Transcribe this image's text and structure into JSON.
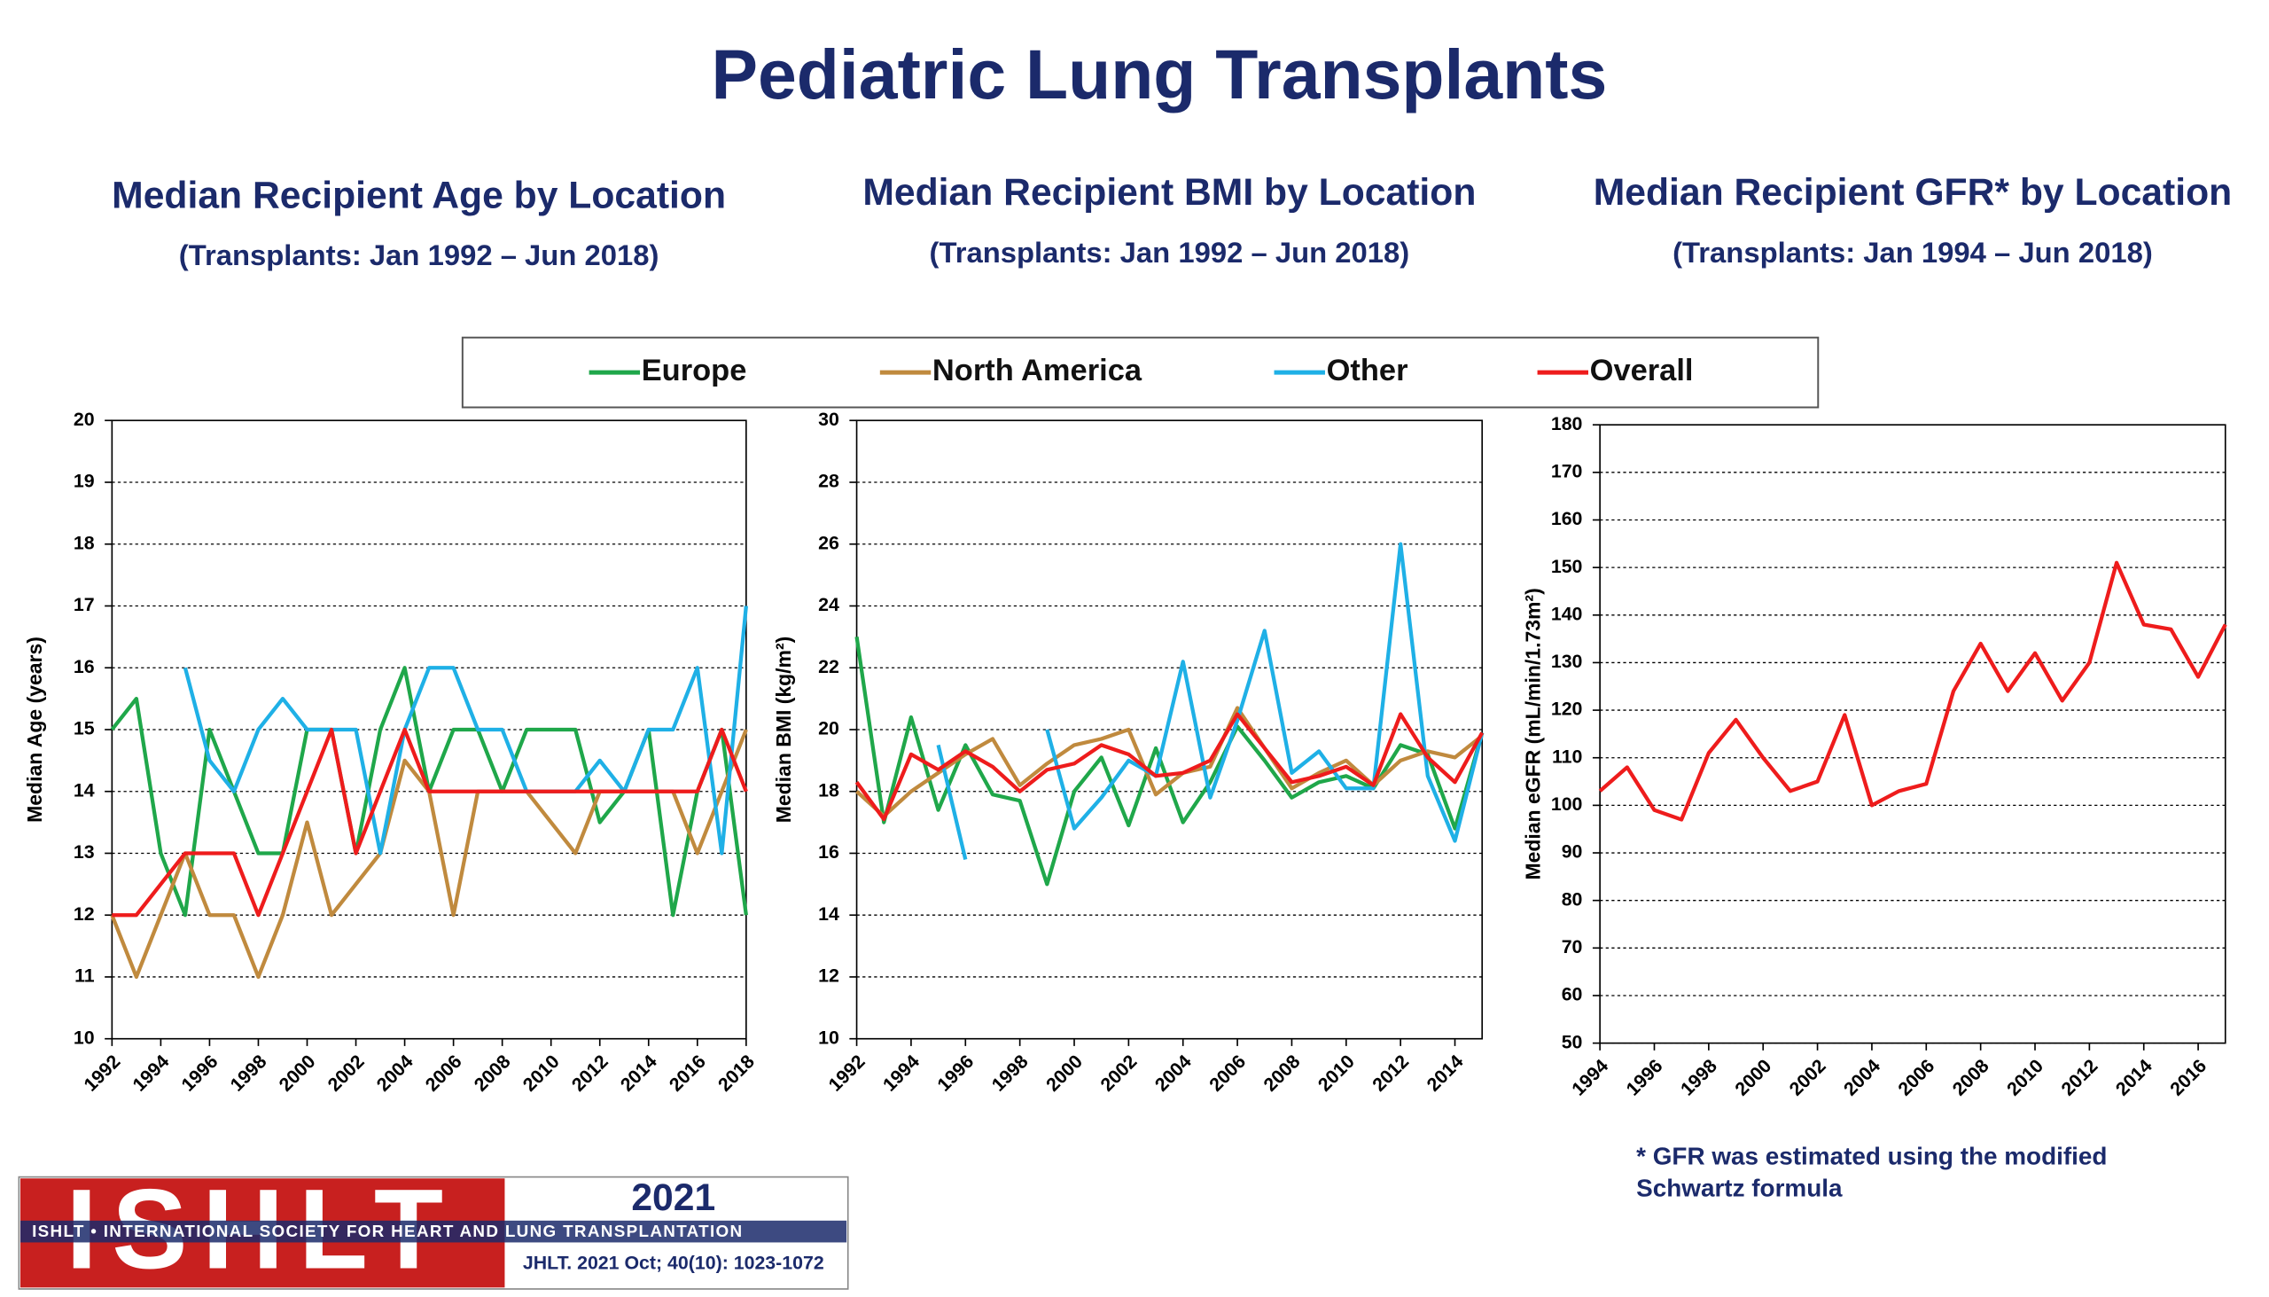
{
  "title": "Pediatric Lung Transplants",
  "chart_data": [
    {
      "type": "line",
      "title": "Median Recipient Age by Location",
      "subtitle": "(Transplants: Jan 1992 – Jun 2018)",
      "y_label": "Median Age (years)",
      "x": [
        1992,
        1993,
        1994,
        1995,
        1996,
        1997,
        1998,
        1999,
        2000,
        2001,
        2002,
        2003,
        2004,
        2005,
        2006,
        2007,
        2008,
        2009,
        2010,
        2011,
        2012,
        2013,
        2014,
        2015,
        2016,
        2017,
        2018
      ],
      "xlim": [
        1992,
        2018
      ],
      "xticks": [
        1992,
        1994,
        1996,
        1998,
        2000,
        2002,
        2004,
        2006,
        2008,
        2010,
        2012,
        2014,
        2016,
        2018
      ],
      "ylim": [
        10,
        20
      ],
      "yticks": [
        10,
        11,
        12,
        13,
        14,
        15,
        16,
        17,
        18,
        19,
        20
      ],
      "grid": true,
      "series": [
        {
          "name": "Europe",
          "color": "#1fa74a",
          "values": [
            15,
            15.5,
            13,
            12,
            15,
            14,
            13,
            13,
            15,
            15,
            13,
            15,
            16,
            14,
            15,
            15,
            14,
            15,
            15,
            15,
            13.5,
            14,
            15,
            12,
            14,
            15,
            12
          ]
        },
        {
          "name": "North America",
          "color": "#c08a3e",
          "values": [
            12,
            11,
            12,
            13,
            12,
            12,
            11,
            12,
            13.5,
            12,
            12.5,
            13,
            14.5,
            14,
            12,
            14,
            14,
            14,
            13.5,
            13,
            14,
            14,
            14,
            14,
            13,
            14,
            15
          ]
        },
        {
          "name": "Other",
          "color": "#1fb0e6",
          "values": [
            null,
            null,
            null,
            16,
            14.5,
            14,
            15,
            15.5,
            15,
            15,
            15,
            13,
            15,
            16,
            16,
            15,
            15,
            14,
            14,
            14,
            14.5,
            14,
            15,
            15,
            16,
            13,
            17
          ]
        },
        {
          "name": "Overall",
          "color": "#ee1c1c",
          "values": [
            12,
            12,
            12.5,
            13,
            13,
            13,
            12,
            13,
            14,
            15,
            13,
            14,
            15,
            14,
            14,
            14,
            14,
            14,
            14,
            14,
            14,
            14,
            14,
            14,
            14,
            15,
            14
          ]
        }
      ]
    },
    {
      "type": "line",
      "title": "Median Recipient BMI by Location",
      "subtitle": "(Transplants: Jan 1992 – Jun 2018)",
      "y_label": "Median BMI (kg/m²)",
      "x": [
        1992,
        1993,
        1994,
        1995,
        1996,
        1997,
        1998,
        1999,
        2000,
        2001,
        2002,
        2003,
        2004,
        2005,
        2006,
        2007,
        2008,
        2009,
        2010,
        2011,
        2012,
        2013,
        2014,
        2015
      ],
      "xlim": [
        1992,
        2015
      ],
      "xticks": [
        1992,
        1994,
        1996,
        1998,
        2000,
        2002,
        2004,
        2006,
        2008,
        2010,
        2012,
        2014
      ],
      "ylim": [
        10,
        30
      ],
      "yticks": [
        10,
        12,
        14,
        16,
        18,
        20,
        22,
        24,
        26,
        28,
        30
      ],
      "grid": true,
      "series": [
        {
          "name": "Europe",
          "color": "#1fa74a",
          "values": [
            23,
            17,
            20.4,
            17.4,
            19.5,
            17.9,
            17.7,
            15,
            18,
            19.1,
            16.9,
            19.4,
            17,
            18.3,
            20.1,
            19,
            17.8,
            18.3,
            18.5,
            18.1,
            19.5,
            19.2,
            16.8,
            19.9
          ]
        },
        {
          "name": "North America",
          "color": "#c08a3e",
          "values": [
            18,
            17.2,
            18,
            18.6,
            19.2,
            19.7,
            18.2,
            18.9,
            19.5,
            19.7,
            20,
            17.9,
            18.6,
            18.8,
            20.7,
            19.4,
            18.1,
            18.6,
            19,
            18.2,
            19,
            19.3,
            19.1,
            19.8
          ]
        },
        {
          "name": "Other",
          "color": "#1fb0e6",
          "values": [
            null,
            null,
            null,
            19.5,
            15.8,
            null,
            null,
            20,
            16.8,
            17.8,
            19,
            18.5,
            22.2,
            17.8,
            20.3,
            23.2,
            18.6,
            19.3,
            18.1,
            18.1,
            26,
            18.5,
            16.4,
            19.9
          ]
        },
        {
          "name": "Overall",
          "color": "#ee1c1c",
          "values": [
            18.3,
            17.1,
            19.2,
            18.7,
            19.3,
            18.8,
            18,
            18.7,
            18.9,
            19.5,
            19.2,
            18.5,
            18.6,
            19,
            20.5,
            19.4,
            18.3,
            18.5,
            18.8,
            18.2,
            20.5,
            19.1,
            18.3,
            19.9
          ]
        }
      ]
    },
    {
      "type": "line",
      "title": "Median Recipient GFR* by Location",
      "subtitle": "(Transplants: Jan 1994 – Jun 2018)",
      "y_label": "Median eGFR (mL/min/1.73m²)",
      "x": [
        1994,
        1995,
        1996,
        1997,
        1998,
        1999,
        2000,
        2001,
        2002,
        2003,
        2004,
        2005,
        2006,
        2007,
        2008,
        2009,
        2010,
        2011,
        2012,
        2013,
        2014,
        2015,
        2016,
        2017
      ],
      "xlim": [
        1994,
        2017
      ],
      "xticks": [
        1994,
        1996,
        1998,
        2000,
        2002,
        2004,
        2006,
        2008,
        2010,
        2012,
        2014,
        2016
      ],
      "ylim": [
        50,
        180
      ],
      "yticks": [
        50,
        60,
        70,
        80,
        90,
        100,
        110,
        120,
        130,
        140,
        150,
        160,
        170,
        180
      ],
      "grid": true,
      "series": [
        {
          "name": "Overall",
          "color": "#ee1c1c",
          "values": [
            103,
            108,
            99,
            97,
            111,
            118,
            110,
            103,
            105,
            119,
            100,
            103,
            104.5,
            124,
            134,
            124,
            132,
            122,
            130,
            151,
            138,
            137,
            127,
            138
          ]
        }
      ]
    }
  ],
  "footnote": [
    "* GFR was estimated using the modified",
    "Schwartz formula"
  ],
  "logo": {
    "mark": "ISHLT",
    "year": "2021",
    "society": "ISHLT • INTERNATIONAL SOCIETY FOR HEART AND LUNG TRANSPLANTATION",
    "citation": "JHLT. 2021 Oct; 40(10): 1023-1072"
  }
}
